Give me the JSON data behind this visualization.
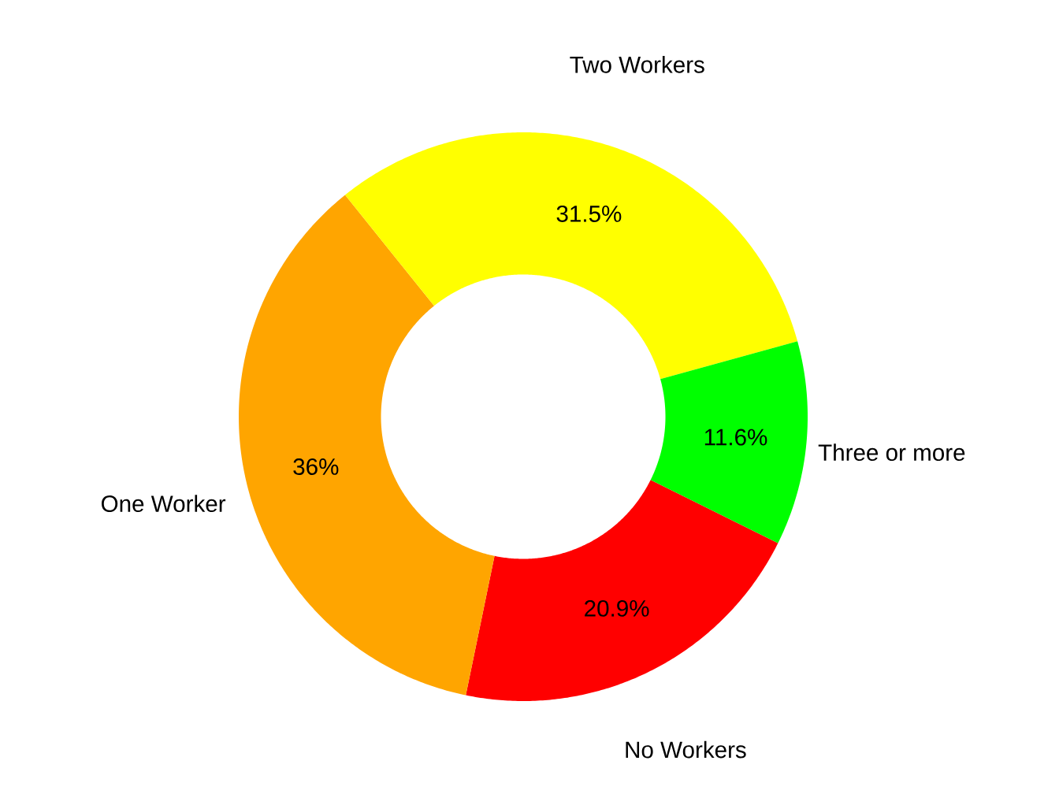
{
  "chart_data": {
    "type": "donut",
    "categories": [
      "No Workers",
      "One Worker",
      "Two Workers",
      "Three or more"
    ],
    "values": [
      20.9,
      36,
      31.5,
      11.6
    ],
    "colors": [
      "#ff0000",
      "#ffa500",
      "#ffff00",
      "#00ff00"
    ],
    "value_labels": [
      "20.9%",
      "36%",
      "31.5%",
      "11.6%"
    ]
  }
}
